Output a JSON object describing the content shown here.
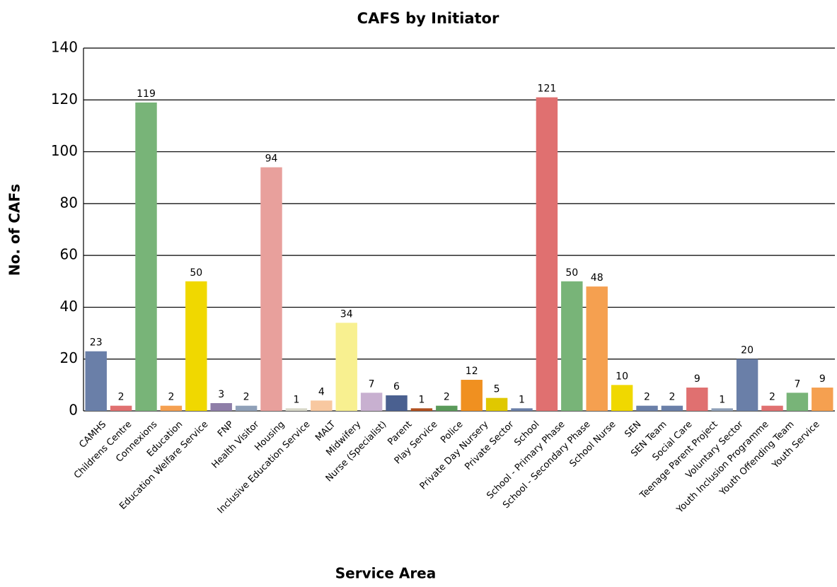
{
  "chart_data": {
    "type": "bar",
    "title": "CAFS by Initiator",
    "x_label": "Service Area",
    "y_label": "No. of CAFs",
    "categories": [
      "CAMHS",
      "Childrens Centre",
      "Connexions",
      "Education",
      "Education Welfare Service",
      "FNP",
      "Health Visitor",
      "Housing",
      "Inclusive Education Service",
      "MALT",
      "Midwifery",
      "Nurse (Specialist)",
      "Parent",
      "Play Service",
      "Police",
      "Private Day Nursery",
      "Private Sector",
      "School",
      "School - Primary Phase",
      "School - Secondary Phase",
      "School Nurse",
      "SEN",
      "SEN Team",
      "Social Care",
      "Teenage Parent Project",
      "Voluntary Sector",
      "Youth Inclusion Programme",
      "Youth Offending Team",
      "Youth Service",
      null
    ],
    "values": [
      23,
      2,
      119,
      2,
      50,
      3,
      2,
      94,
      1,
      4,
      34,
      7,
      6,
      1,
      2,
      12,
      5,
      1,
      121,
      50,
      48,
      10,
      2,
      2,
      9,
      1,
      20,
      2,
      7,
      9
    ],
    "colors": [
      "#6a7fa8",
      "#e07070",
      "#78b478",
      "#f5a050",
      "#f0d800",
      "#8e7ea8",
      "#8fa0b8",
      "#e8a09c",
      "#d8d8c8",
      "#f8c8a0",
      "#f8f090",
      "#c8b0d0",
      "#4a6090",
      "#b05020",
      "#5a9a5a",
      "#f09020",
      "#e0c800",
      "#6a7fa8",
      "#e07070",
      "#78b478",
      "#f5a050",
      "#f0d800",
      "#6a7fa8",
      "#6a7fa8",
      "#e07070",
      "#8fa0b8",
      "#6a7fa8",
      "#e07070",
      "#78b478",
      "#f5a050"
    ],
    "ylim": [
      0,
      140
    ],
    "yticks": [
      0,
      20,
      40,
      60,
      80,
      100,
      120,
      140
    ],
    "grid": true
  }
}
